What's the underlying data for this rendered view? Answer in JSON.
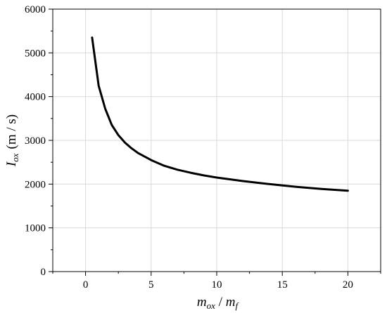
{
  "chart_data": {
    "type": "line",
    "xlabel": {
      "main": "m",
      "sub1": "ox",
      "sep": " / ",
      "main2": "m",
      "sub2": "f"
    },
    "ylabel": {
      "main": "I",
      "sub": "ox",
      "unit": "(m / s)"
    },
    "xlim": [
      -2.5,
      22.5
    ],
    "ylim": [
      0,
      6000
    ],
    "xticks": [
      0,
      5,
      10,
      15,
      20
    ],
    "yticks": [
      0,
      1000,
      2000,
      3000,
      4000,
      5000,
      6000
    ],
    "grid": true,
    "series": [
      {
        "color": "#000000",
        "x": [
          0.5,
          1,
          1.5,
          2,
          2.5,
          3,
          3.5,
          4,
          5,
          6,
          7,
          8,
          9,
          10,
          12,
          14,
          16,
          18,
          20
        ],
        "y": [
          5350,
          4250,
          3720,
          3350,
          3120,
          2950,
          2820,
          2710,
          2550,
          2420,
          2330,
          2260,
          2200,
          2150,
          2070,
          2000,
          1940,
          1890,
          1850
        ]
      }
    ]
  }
}
